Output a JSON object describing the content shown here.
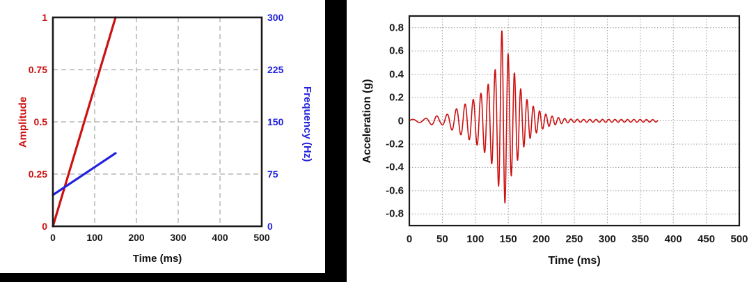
{
  "chart_data": [
    {
      "id": "sweep-parameters",
      "type": "line",
      "title": "",
      "xlabel": "Time (ms)",
      "xlim": [
        0,
        500
      ],
      "xticks": [
        "0",
        "100",
        "200",
        "300",
        "400",
        "500"
      ],
      "left_axis": {
        "label": "Amplitude",
        "color": "#cc1111",
        "lim": [
          0,
          1
        ],
        "ticks": [
          "0",
          "0.25",
          "0.5",
          "0.75",
          "1"
        ]
      },
      "right_axis": {
        "label": "Frequency (Hz)",
        "color": "#2323dd",
        "lim": [
          0,
          300
        ],
        "ticks": [
          "0",
          "75",
          "150",
          "225",
          "300"
        ]
      },
      "grid": {
        "on": true,
        "style": "dashed",
        "color": "#ababab",
        "x_values": [
          100,
          200,
          300,
          400
        ],
        "left_y_values": [
          0.25,
          0.5,
          0.75
        ]
      },
      "legend": "none",
      "series": [
        {
          "name": "Amplitude",
          "axis": "left",
          "color": "#cc1111",
          "points": [
            [
              0,
              0
            ],
            [
              150,
              1
            ]
          ]
        },
        {
          "name": "Frequency",
          "axis": "right",
          "color": "#2323dd",
          "points": [
            [
              0,
              45
            ],
            [
              150,
              105
            ]
          ]
        }
      ]
    },
    {
      "id": "acceleration-waveform",
      "type": "line",
      "title": "",
      "xlabel": "Time (ms)",
      "ylabel": "Acceleration (g)",
      "xlim": [
        0,
        500
      ],
      "ylim": [
        -0.9,
        0.9
      ],
      "xticks": [
        "0",
        "50",
        "100",
        "150",
        "200",
        "250",
        "300",
        "350",
        "400",
        "450",
        "500"
      ],
      "yticks": [
        "0.8",
        "0.6",
        "0.4",
        "0.2",
        "0",
        "-0.2",
        "-0.4",
        "-0.6",
        "-0.8"
      ],
      "line_color": "#cc1111",
      "grid": {
        "on": true,
        "style": "dotted",
        "color": "#9a9a9a"
      },
      "legend": "none",
      "signal": {
        "kind": "chirp_burst",
        "description": "amplitude-modulated frequency sweep",
        "t_start_ms": 0,
        "t_end_ms": 377,
        "freq_sweep_hz": {
          "start": 45,
          "end": 105,
          "end_time_ms": 150
        },
        "peak_acceleration_g": 0.82,
        "min_acceleration_g": -0.75,
        "peak_time_ms": 140,
        "envelope_g": [
          [
            0,
            0.012
          ],
          [
            20,
            0.015
          ],
          [
            32,
            0.03
          ],
          [
            40,
            0.045
          ],
          [
            48,
            0.03
          ],
          [
            55,
            0.05
          ],
          [
            62,
            0.07
          ],
          [
            70,
            0.1
          ],
          [
            78,
            0.12
          ],
          [
            86,
            0.15
          ],
          [
            94,
            0.17
          ],
          [
            100,
            0.2
          ],
          [
            106,
            0.22
          ],
          [
            112,
            0.26
          ],
          [
            118,
            0.3
          ],
          [
            124,
            0.36
          ],
          [
            129,
            0.42
          ],
          [
            134,
            0.52
          ],
          [
            138,
            0.66
          ],
          [
            141,
            0.82
          ],
          [
            144,
            0.74
          ],
          [
            147,
            0.63
          ],
          [
            150,
            0.57
          ],
          [
            154,
            0.48
          ],
          [
            158,
            0.43
          ],
          [
            162,
            0.37
          ],
          [
            166,
            0.31
          ],
          [
            170,
            0.26
          ],
          [
            175,
            0.21
          ],
          [
            180,
            0.17
          ],
          [
            185,
            0.14
          ],
          [
            190,
            0.115
          ],
          [
            196,
            0.09
          ],
          [
            202,
            0.07
          ],
          [
            210,
            0.05
          ],
          [
            218,
            0.038
          ],
          [
            226,
            0.028
          ],
          [
            235,
            0.02
          ],
          [
            245,
            0.015
          ],
          [
            260,
            0.012
          ],
          [
            290,
            0.013
          ],
          [
            320,
            0.012
          ],
          [
            350,
            0.012
          ],
          [
            377,
            0.01
          ]
        ]
      }
    }
  ],
  "frame": {
    "axis_color": "#1a1a1a"
  }
}
